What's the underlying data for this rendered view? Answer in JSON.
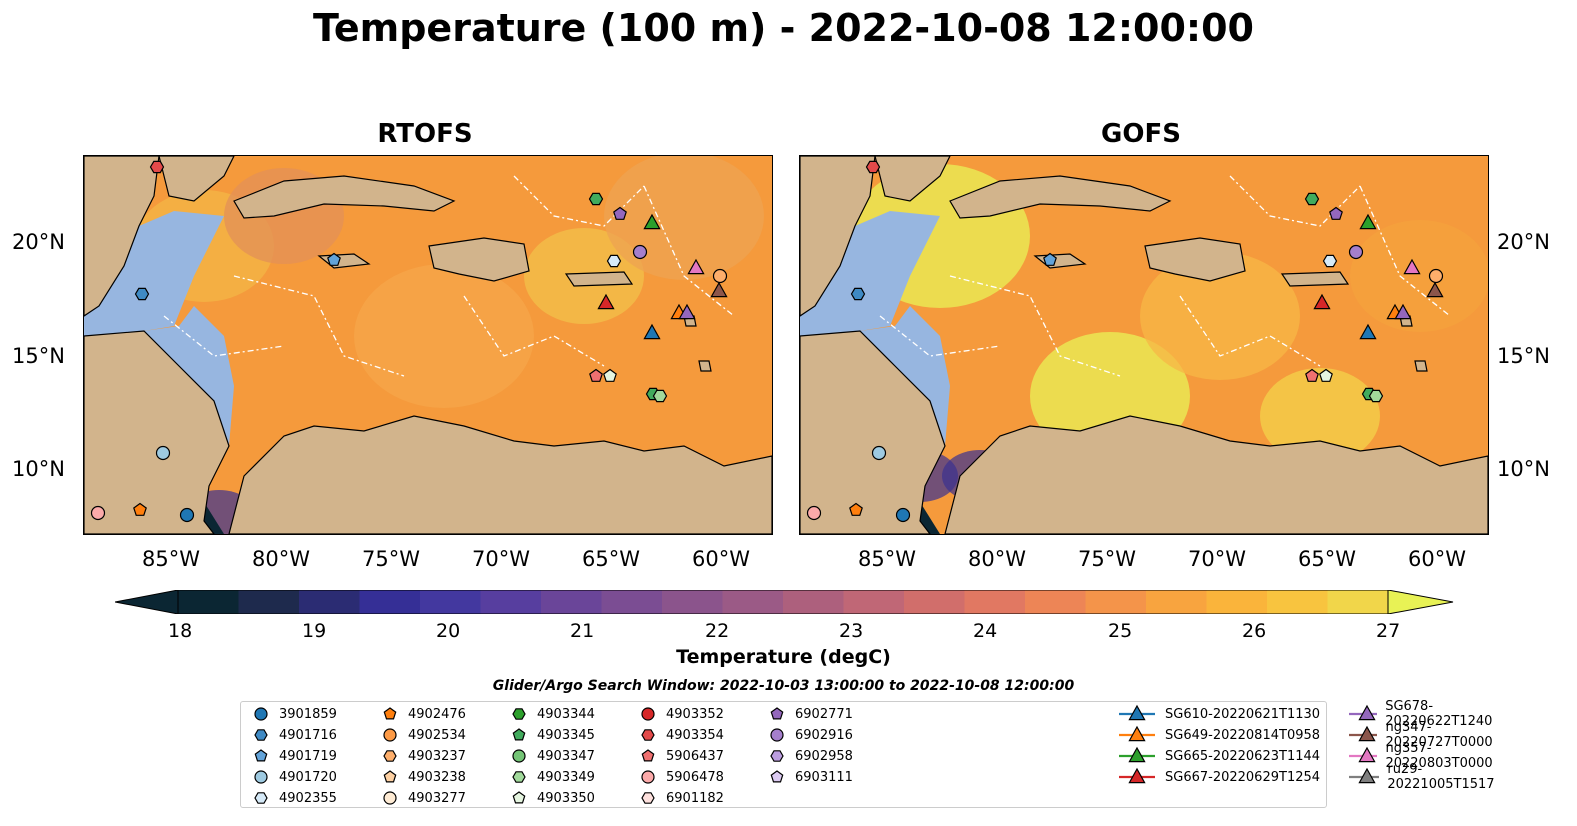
{
  "title": "Temperature (100 m) - 2022-10-08 12:00:00",
  "panels": [
    {
      "title": "RTOFS",
      "cold_spots": [
        [
          80,
          340
        ],
        [
          100,
          300
        ],
        [
          135,
          360
        ],
        [
          200,
          330
        ],
        [
          210,
          360
        ],
        [
          230,
          330
        ],
        [
          300,
          380
        ],
        [
          430,
          375
        ],
        [
          470,
          395
        ],
        [
          520,
          360
        ],
        [
          560,
          360
        ],
        [
          600,
          380
        ],
        [
          640,
          380
        ]
      ]
    },
    {
      "title": "GOFS",
      "cold_spots": [
        [
          120,
          320
        ],
        [
          180,
          320
        ],
        [
          250,
          340
        ],
        [
          310,
          360
        ],
        [
          460,
          385
        ],
        [
          500,
          405
        ],
        [
          600,
          395
        ]
      ]
    }
  ],
  "y_ticks": [
    "20°N",
    "15°N",
    "10°N"
  ],
  "x_ticks": [
    "85°W",
    "80°W",
    "75°W",
    "70°W",
    "65°W",
    "60°W"
  ],
  "colorbar": {
    "label": "Temperature (degC)",
    "ticks": [
      "18",
      "19",
      "20",
      "21",
      "22",
      "23",
      "24",
      "25",
      "26",
      "27"
    ],
    "min": 18,
    "max": 27,
    "colors": [
      "#0b2633",
      "#1e2a4d",
      "#2b2c73",
      "#352f96",
      "#43389f",
      "#573e9f",
      "#6a4599",
      "#7b4d93",
      "#8b548c",
      "#9b5a86",
      "#ad607d",
      "#c06776",
      "#d16e6b",
      "#e17862",
      "#ed8556",
      "#f4944a",
      "#f8a43f",
      "#fab43b",
      "#f8c43f",
      "#f1d64a",
      "#e8f255"
    ]
  },
  "search_window": "Glider/Argo Search Window: 2022-10-03 13:00:00 to 2022-10-08 12:00:00",
  "map_colors": {
    "land": "#d2b48c",
    "ocean_shelf": "#97b6e0",
    "ocean_deep": "#f59a3c",
    "cold": "#3b3190"
  },
  "legend": [
    {
      "label": "3901859",
      "marker": "circle",
      "color": "#1f77b4"
    },
    {
      "label": "4901716",
      "marker": "hexagon",
      "color": "#3f8ac4"
    },
    {
      "label": "4901719",
      "marker": "pentagon",
      "color": "#62a3d9"
    },
    {
      "label": "4901720",
      "marker": "circle",
      "color": "#9ecae1"
    },
    {
      "label": "4902355",
      "marker": "hexagon",
      "color": "#d6eaf8"
    },
    {
      "label": "4902476",
      "marker": "pentagon",
      "color": "#ff7f0e"
    },
    {
      "label": "4902534",
      "marker": "circle",
      "color": "#fd9a45"
    },
    {
      "label": "4903237",
      "marker": "hexagon",
      "color": "#fdae6b"
    },
    {
      "label": "4903238",
      "marker": "pentagon",
      "color": "#fdd0a2"
    },
    {
      "label": "4903277",
      "marker": "circle",
      "color": "#feebd4"
    },
    {
      "label": "4903344",
      "marker": "hexagon",
      "color": "#2ca02c"
    },
    {
      "label": "4903345",
      "marker": "pentagon",
      "color": "#41ab5d"
    },
    {
      "label": "4903347",
      "marker": "circle",
      "color": "#74c476"
    },
    {
      "label": "4903349",
      "marker": "hexagon",
      "color": "#a1d99b"
    },
    {
      "label": "4903350",
      "marker": "pentagon",
      "color": "#e5f5e0"
    },
    {
      "label": "4903352",
      "marker": "circle",
      "color": "#d62728"
    },
    {
      "label": "4903354",
      "marker": "hexagon",
      "color": "#e34a4a"
    },
    {
      "label": "5906437",
      "marker": "pentagon",
      "color": "#f07070"
    },
    {
      "label": "5906478",
      "marker": "circle",
      "color": "#fcaaaa"
    },
    {
      "label": "6901182",
      "marker": "hexagon",
      "color": "#fde0dd"
    },
    {
      "label": "6902771",
      "marker": "pentagon",
      "color": "#9467bd"
    },
    {
      "label": "6902916",
      "marker": "circle",
      "color": "#a57fcc"
    },
    {
      "label": "6902958",
      "marker": "hexagon",
      "color": "#bc9ee0"
    },
    {
      "label": "6903111",
      "marker": "pentagon",
      "color": "#dccbf2"
    },
    {
      "label": "SG610-20220621T1130",
      "marker": "triangle",
      "color": "#1f77b4"
    },
    {
      "label": "SG649-20220814T0958",
      "marker": "triangle",
      "color": "#ff7f0e"
    },
    {
      "label": "SG665-20220623T1144",
      "marker": "triangle",
      "color": "#2ca02c"
    },
    {
      "label": "SG667-20220629T1254",
      "marker": "triangle",
      "color": "#d62728"
    },
    {
      "label": "SG678-20220622T1240",
      "marker": "triangle",
      "color": "#9467bd"
    },
    {
      "label": "ng347-20220727T0000",
      "marker": "triangle",
      "color": "#8c564b"
    },
    {
      "label": "ng357-20220803T0000",
      "marker": "triangle",
      "color": "#e377c2"
    },
    {
      "label": "ru29-20221005T1517",
      "marker": "triangle",
      "color": "#7f7f7f"
    }
  ]
}
